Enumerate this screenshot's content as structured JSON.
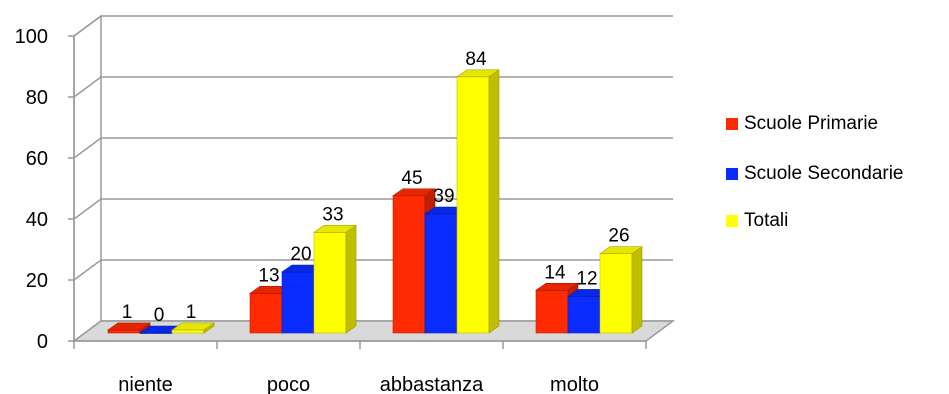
{
  "chart_data": {
    "type": "bar",
    "style": "3d-clustered-column",
    "categories": [
      "niente",
      "poco",
      "abbastanza",
      "molto"
    ],
    "series": [
      {
        "name": "Scuole Primarie",
        "values": [
          1,
          13,
          45,
          14
        ],
        "color": "#ff2a00"
      },
      {
        "name": "Scuole Secondarie",
        "values": [
          0,
          20,
          39,
          12
        ],
        "color": "#0a2cff"
      },
      {
        "name": "Totali",
        "values": [
          1,
          33,
          84,
          26
        ],
        "color": "#ffff00"
      }
    ],
    "yticks": [
      "0",
      "20",
      "40",
      "60",
      "80",
      "100"
    ],
    "ylim": [
      0,
      100
    ],
    "grid": true,
    "legend_position": "right"
  }
}
